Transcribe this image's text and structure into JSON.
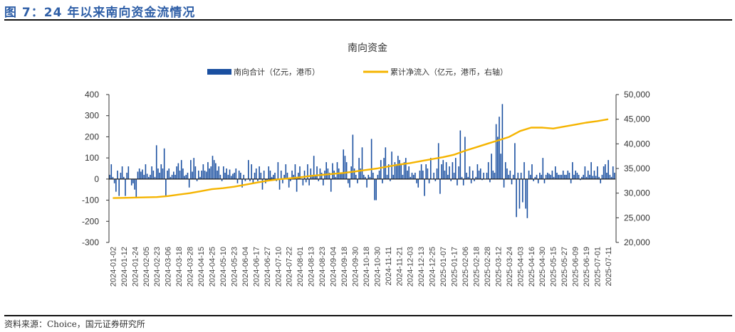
{
  "figure_title": "图 7：24 年以来南向资金流情况",
  "source": "资料来源：Choice，国元证券研究所",
  "colors": {
    "bar": "#1a4fa0",
    "line": "#f5b400",
    "title": "#2f5fa7"
  },
  "chart_data": {
    "type": "bar+line",
    "title": "南向资金",
    "legend_position": "top",
    "grid": false,
    "series": [
      {
        "name": "南向合计（亿元，港币）",
        "type": "bar",
        "axis": "left"
      },
      {
        "name": "累计净流入（亿元，港币，右轴）",
        "type": "line",
        "axis": "right"
      }
    ],
    "left_axis": {
      "ylim": [
        -300,
        400
      ],
      "ticks": [
        "400",
        "300",
        "200",
        "100",
        "0",
        "-100",
        "-200",
        "-300"
      ]
    },
    "right_axis": {
      "ylim": [
        20000,
        50000
      ],
      "ticks": [
        "50,000",
        "45,000",
        "40,000",
        "35,000",
        "30,000",
        "25,000",
        "20,000"
      ]
    },
    "x_tick_labels": [
      "2024-01-02",
      "2024-01-12",
      "2024-01-24",
      "2024-02-05",
      "2024-02-23",
      "2024-03-06",
      "2024-03-18",
      "2024-03-28",
      "2024-04-15",
      "2024-04-25",
      "2024-05-10",
      "2024-05-23",
      "2024-06-04",
      "2024-06-17",
      "2024-06-27",
      "2024-07-10",
      "2024-07-22",
      "2024-08-01",
      "2024-08-13",
      "2024-08-23",
      "2024-09-04",
      "2024-09-18",
      "2024-09-30",
      "2024-10-18",
      "2024-10-30",
      "2024-11-11",
      "2024-11-21",
      "2024-12-03",
      "2024-12-13",
      "2024-12-25",
      "2025-01-07",
      "2025-01-17",
      "2025-02-06",
      "2025-02-18",
      "2025-02-28",
      "2025-03-12",
      "2025-03-24",
      "2025-04-03",
      "2025-04-16",
      "2025-04-30",
      "2025-05-15",
      "2025-05-27",
      "2025-06-09",
      "2025-06-19",
      "2025-07-01",
      "2025-07-11"
    ],
    "bar_values": [
      20,
      70,
      10,
      -20,
      -60,
      40,
      -80,
      30,
      60,
      10,
      -80,
      30,
      60,
      0,
      -30,
      -20,
      -50,
      -90,
      35,
      50,
      35,
      45,
      20,
      70,
      25,
      10,
      20,
      60,
      40,
      10,
      160,
      50,
      30,
      70,
      50,
      145,
      -80,
      40,
      50,
      10,
      20,
      35,
      20,
      60,
      75,
      40,
      90,
      50,
      15,
      20,
      30,
      -40,
      90,
      35,
      100,
      60,
      -10,
      40,
      10,
      40,
      70,
      40,
      35,
      80,
      50,
      60,
      110,
      90,
      75,
      40,
      60,
      20,
      -10,
      60,
      30,
      50,
      20,
      45,
      15,
      25,
      30,
      50,
      -20,
      40,
      30,
      -40,
      20,
      -10,
      0,
      90,
      -10,
      70,
      -20,
      30,
      50,
      -10,
      60,
      30,
      -50,
      40,
      -20,
      -10,
      60,
      40,
      10,
      20,
      30,
      -10,
      80,
      -50,
      40,
      -20,
      20,
      70,
      30,
      -40,
      -10,
      40,
      20,
      70,
      -60,
      30,
      60,
      0,
      -30,
      40,
      -15,
      70,
      -30,
      50,
      20,
      110,
      20,
      60,
      -10,
      50,
      30,
      -30,
      40,
      80,
      50,
      30,
      -60,
      75,
      40,
      10,
      80,
      50,
      30,
      30,
      140,
      110,
      80,
      -20,
      -40,
      60,
      210,
      50,
      20,
      -20,
      100,
      50,
      150,
      20,
      10,
      -40,
      20,
      10,
      190,
      30,
      -100,
      -100,
      20,
      40,
      90,
      -20,
      100,
      150,
      20,
      70,
      -10,
      130,
      20,
      80,
      70,
      110,
      90,
      70,
      20,
      80,
      100,
      40,
      60,
      10,
      30,
      20,
      30,
      -20,
      -40,
      40,
      70,
      40,
      -80,
      70,
      50,
      -20,
      100,
      0,
      30,
      -10,
      50,
      170,
      -70,
      70,
      90,
      40,
      80,
      20,
      60,
      -10,
      80,
      30,
      100,
      -30,
      60,
      230,
      10,
      -30,
      200,
      30,
      10,
      60,
      -20,
      40,
      -10,
      10,
      70,
      40,
      50,
      -5,
      30,
      0,
      30,
      80,
      -15,
      120,
      40,
      30,
      260,
      200,
      295,
      120,
      355,
      -40,
      80,
      50,
      20,
      40,
      -25,
      20,
      170,
      -180,
      30,
      -140,
      30,
      -110,
      80,
      -140,
      -185,
      40,
      20,
      70,
      -10,
      10,
      20,
      -20,
      30,
      20,
      100,
      -20,
      20,
      30,
      25,
      20,
      40,
      10,
      60,
      30,
      20,
      20,
      20,
      40,
      20,
      20,
      40,
      30,
      -20,
      80,
      20,
      40,
      30,
      20,
      -5,
      10,
      20,
      60,
      10,
      40,
      20,
      80,
      15,
      40,
      15,
      60,
      10,
      -20,
      20,
      60,
      70,
      30,
      90,
      20,
      10,
      60,
      30
    ],
    "line_values_at_ticks": [
      29000,
      29050,
      29100,
      29150,
      29200,
      29400,
      29700,
      30000,
      30400,
      30800,
      31000,
      31300,
      31700,
      32100,
      32500,
      32800,
      33000,
      33200,
      33500,
      33700,
      33900,
      34100,
      34400,
      34700,
      35000,
      35400,
      35800,
      36100,
      36500,
      36900,
      37300,
      37800,
      38600,
      39300,
      40000,
      40700,
      41400,
      42600,
      43300,
      43300,
      43100,
      43500,
      43900,
      44300,
      44600,
      45000
    ]
  }
}
